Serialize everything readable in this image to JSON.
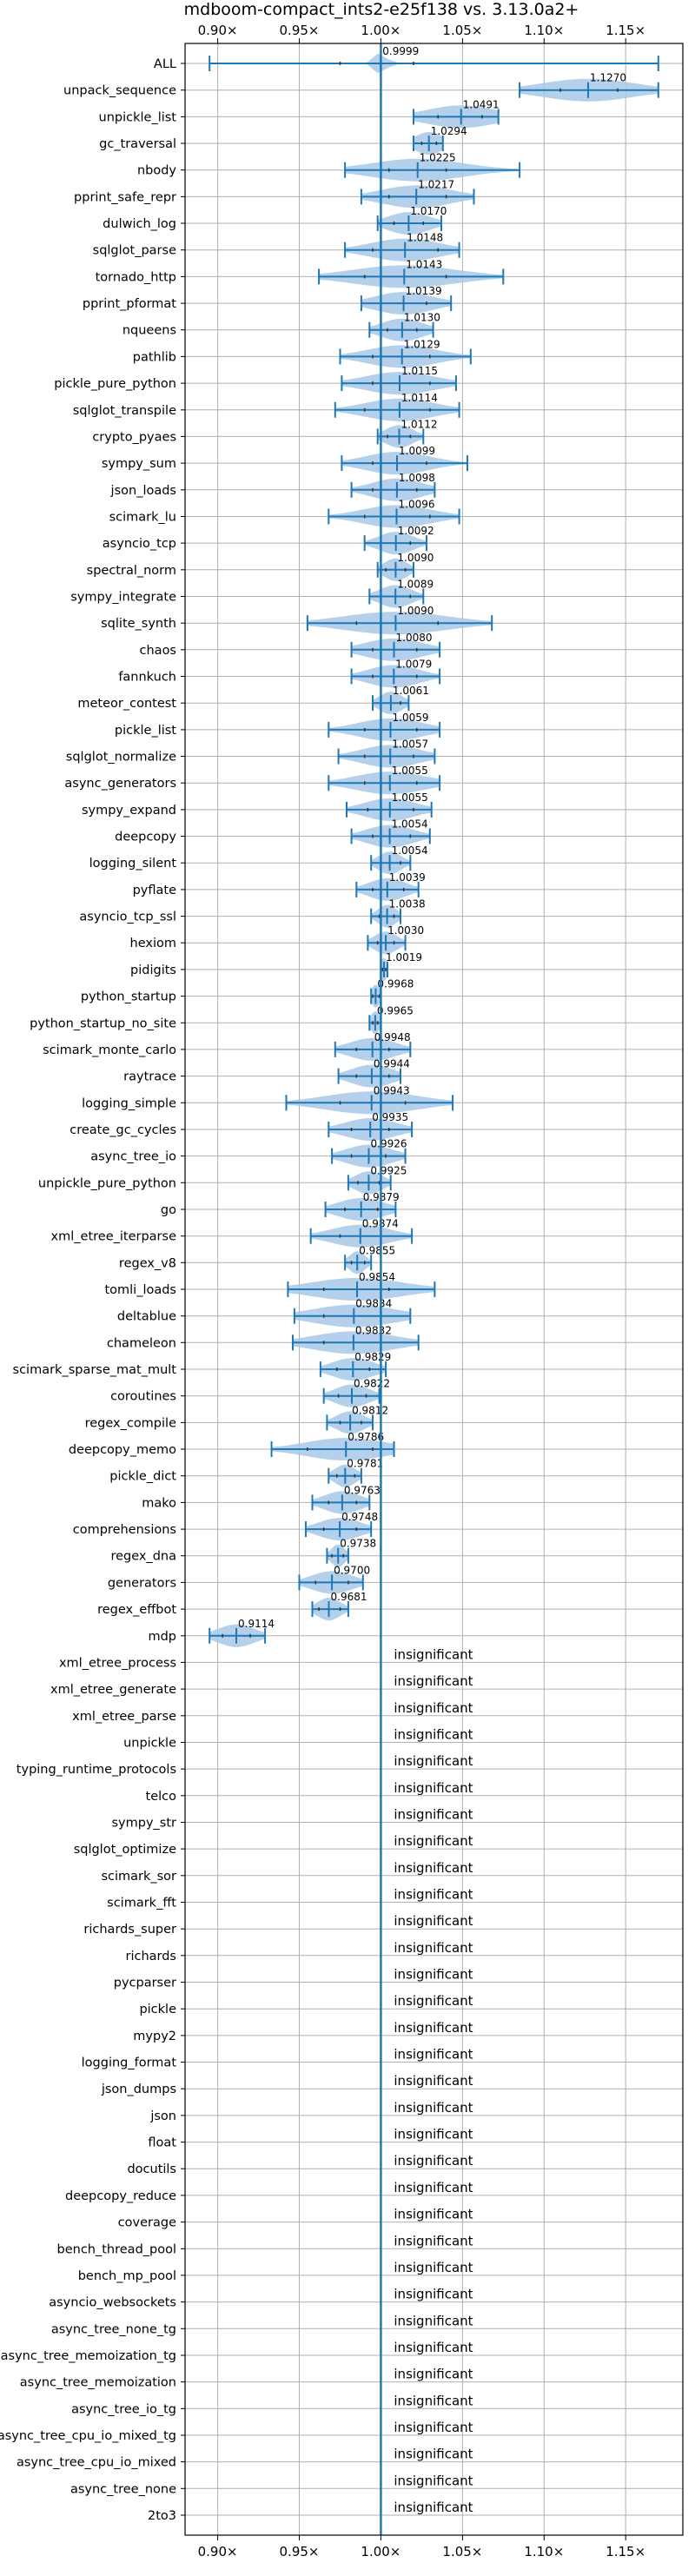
{
  "chart_data": {
    "type": "violin",
    "title": "mdboom-compact_ints2-e25f138 vs. 3.13.0a2+",
    "xlim": [
      0.88,
      1.185
    ],
    "x_ticks": [
      0.9,
      0.95,
      1.0,
      1.05,
      1.1,
      1.15
    ],
    "x_tick_labels": [
      "0.90×",
      "0.95×",
      "1.00×",
      "1.05×",
      "1.10×",
      "1.15×"
    ],
    "reference_line": 1.0,
    "grid": true,
    "colors": {
      "violin": "#a7c8e6",
      "line": "#1f77b4",
      "grid": "#b0b0b0"
    },
    "insignificant_text": "insignificant",
    "benchmarks": [
      {
        "name": "ALL",
        "label": "0.9999",
        "mean": 0.9999,
        "min": 0.895,
        "max": 1.17,
        "q1": 0.975,
        "q3": 1.02,
        "spread": 0.005
      },
      {
        "name": "unpack_sequence",
        "label": "1.1270",
        "mean": 1.127,
        "min": 1.085,
        "max": 1.17,
        "q1": 1.11,
        "q3": 1.145,
        "spread": 0.04
      },
      {
        "name": "unpickle_list",
        "label": "1.0491",
        "mean": 1.0491,
        "min": 1.02,
        "max": 1.072,
        "q1": 1.035,
        "q3": 1.062,
        "spread": 0.03
      },
      {
        "name": "gc_traversal",
        "label": "1.0294",
        "mean": 1.0294,
        "min": 1.02,
        "max": 1.038,
        "q1": 1.025,
        "q3": 1.034,
        "spread": 0.012
      },
      {
        "name": "nbody",
        "label": "1.0225",
        "mean": 1.0225,
        "min": 0.978,
        "max": 1.085,
        "q1": 1.005,
        "q3": 1.04,
        "spread": 0.04
      },
      {
        "name": "pprint_safe_repr",
        "label": "1.0217",
        "mean": 1.0217,
        "min": 0.988,
        "max": 1.057,
        "q1": 1.005,
        "q3": 1.04,
        "spread": 0.03
      },
      {
        "name": "dulwich_log",
        "label": "1.0170",
        "mean": 1.017,
        "min": 0.998,
        "max": 1.037,
        "q1": 1.008,
        "q3": 1.026,
        "spread": 0.018
      },
      {
        "name": "sqlglot_parse",
        "label": "1.0148",
        "mean": 1.0148,
        "min": 0.978,
        "max": 1.048,
        "q1": 0.995,
        "q3": 1.035,
        "spread": 0.03
      },
      {
        "name": "tornado_http",
        "label": "1.0143",
        "mean": 1.0143,
        "min": 0.962,
        "max": 1.075,
        "q1": 0.99,
        "q3": 1.04,
        "spread": 0.045
      },
      {
        "name": "pprint_pformat",
        "label": "1.0139",
        "mean": 1.0139,
        "min": 0.988,
        "max": 1.043,
        "q1": 1.0,
        "q3": 1.028,
        "spread": 0.025
      },
      {
        "name": "nqueens",
        "label": "1.0130",
        "mean": 1.013,
        "min": 0.993,
        "max": 1.032,
        "q1": 1.004,
        "q3": 1.022,
        "spread": 0.018
      },
      {
        "name": "pathlib",
        "label": "1.0129",
        "mean": 1.0129,
        "min": 0.975,
        "max": 1.055,
        "q1": 0.995,
        "q3": 1.03,
        "spread": 0.03
      },
      {
        "name": "pickle_pure_python",
        "label": "1.0115",
        "mean": 1.0115,
        "min": 0.976,
        "max": 1.046,
        "q1": 0.995,
        "q3": 1.03,
        "spread": 0.03
      },
      {
        "name": "sqlglot_transpile",
        "label": "1.0114",
        "mean": 1.0114,
        "min": 0.972,
        "max": 1.048,
        "q1": 0.99,
        "q3": 1.03,
        "spread": 0.03
      },
      {
        "name": "crypto_pyaes",
        "label": "1.0112",
        "mean": 1.0112,
        "min": 0.998,
        "max": 1.026,
        "q1": 1.004,
        "q3": 1.018,
        "spread": 0.012
      },
      {
        "name": "sympy_sum",
        "label": "1.0099",
        "mean": 1.0099,
        "min": 0.976,
        "max": 1.053,
        "q1": 0.995,
        "q3": 1.028,
        "spread": 0.028
      },
      {
        "name": "json_loads",
        "label": "1.0098",
        "mean": 1.0098,
        "min": 0.982,
        "max": 1.033,
        "q1": 0.995,
        "q3": 1.022,
        "spread": 0.022
      },
      {
        "name": "scimark_lu",
        "label": "1.0096",
        "mean": 1.0096,
        "min": 0.968,
        "max": 1.048,
        "q1": 0.99,
        "q3": 1.03,
        "spread": 0.03
      },
      {
        "name": "asyncio_tcp",
        "label": "1.0092",
        "mean": 1.0092,
        "min": 0.99,
        "max": 1.028,
        "q1": 1.0,
        "q3": 1.018,
        "spread": 0.015
      },
      {
        "name": "spectral_norm",
        "label": "1.0090",
        "mean": 1.009,
        "min": 0.998,
        "max": 1.02,
        "q1": 1.003,
        "q3": 1.015,
        "spread": 0.01
      },
      {
        "name": "sympy_integrate",
        "label": "1.0089",
        "mean": 1.0089,
        "min": 0.993,
        "max": 1.026,
        "q1": 1.0,
        "q3": 1.018,
        "spread": 0.014
      },
      {
        "name": "sqlite_synth",
        "label": "1.0090",
        "mean": 1.009,
        "min": 0.955,
        "max": 1.068,
        "q1": 0.985,
        "q3": 1.035,
        "spread": 0.045
      },
      {
        "name": "chaos",
        "label": "1.0080",
        "mean": 1.008,
        "min": 0.982,
        "max": 1.036,
        "q1": 0.995,
        "q3": 1.022,
        "spread": 0.025
      },
      {
        "name": "fannkuch",
        "label": "1.0079",
        "mean": 1.0079,
        "min": 0.982,
        "max": 1.036,
        "q1": 0.995,
        "q3": 1.022,
        "spread": 0.022
      },
      {
        "name": "meteor_contest",
        "label": "1.0061",
        "mean": 1.0061,
        "min": 0.995,
        "max": 1.017,
        "q1": 1.0,
        "q3": 1.012,
        "spread": 0.01
      },
      {
        "name": "pickle_list",
        "label": "1.0059",
        "mean": 1.0059,
        "min": 0.968,
        "max": 1.036,
        "q1": 0.99,
        "q3": 1.022,
        "spread": 0.028
      },
      {
        "name": "sqlglot_normalize",
        "label": "1.0057",
        "mean": 1.0057,
        "min": 0.974,
        "max": 1.033,
        "q1": 0.99,
        "q3": 1.02,
        "spread": 0.025
      },
      {
        "name": "async_generators",
        "label": "1.0055",
        "mean": 1.0055,
        "min": 0.968,
        "max": 1.036,
        "q1": 0.99,
        "q3": 1.022,
        "spread": 0.03
      },
      {
        "name": "sympy_expand",
        "label": "1.0055",
        "mean": 1.0055,
        "min": 0.979,
        "max": 1.031,
        "q1": 0.992,
        "q3": 1.02,
        "spread": 0.022
      },
      {
        "name": "deepcopy",
        "label": "1.0054",
        "mean": 1.0054,
        "min": 0.982,
        "max": 1.03,
        "q1": 0.995,
        "q3": 1.018,
        "spread": 0.02
      },
      {
        "name": "logging_silent",
        "label": "1.0054",
        "mean": 1.0054,
        "min": 0.994,
        "max": 1.018,
        "q1": 1.0,
        "q3": 1.012,
        "spread": 0.01
      },
      {
        "name": "pyflate",
        "label": "1.0039",
        "mean": 1.0039,
        "min": 0.985,
        "max": 1.023,
        "q1": 0.995,
        "q3": 1.014,
        "spread": 0.016
      },
      {
        "name": "asyncio_tcp_ssl",
        "label": "1.0038",
        "mean": 1.0038,
        "min": 0.994,
        "max": 1.012,
        "q1": 0.999,
        "q3": 1.008,
        "spread": 0.008
      },
      {
        "name": "hexiom",
        "label": "1.0030",
        "mean": 1.003,
        "min": 0.992,
        "max": 1.015,
        "q1": 0.998,
        "q3": 1.008,
        "spread": 0.01
      },
      {
        "name": "pidigits",
        "label": "1.0019",
        "mean": 1.0019,
        "min": 1.0,
        "max": 1.004,
        "q1": 1.001,
        "q3": 1.003,
        "spread": 0.003
      },
      {
        "name": "python_startup",
        "label": "0.9968",
        "mean": 0.9968,
        "min": 0.994,
        "max": 1.0,
        "q1": 0.995,
        "q3": 0.999,
        "spread": 0.004
      },
      {
        "name": "python_startup_no_site",
        "label": "0.9965",
        "mean": 0.9965,
        "min": 0.993,
        "max": 1.0,
        "q1": 0.995,
        "q3": 0.998,
        "spread": 0.004
      },
      {
        "name": "scimark_monte_carlo",
        "label": "0.9948",
        "mean": 0.9948,
        "min": 0.972,
        "max": 1.018,
        "q1": 0.985,
        "q3": 1.005,
        "spread": 0.02
      },
      {
        "name": "raytrace",
        "label": "0.9944",
        "mean": 0.9944,
        "min": 0.974,
        "max": 1.012,
        "q1": 0.985,
        "q3": 1.005,
        "spread": 0.018
      },
      {
        "name": "logging_simple",
        "label": "0.9943",
        "mean": 0.9943,
        "min": 0.942,
        "max": 1.044,
        "q1": 0.975,
        "q3": 1.015,
        "spread": 0.04
      },
      {
        "name": "create_gc_cycles",
        "label": "0.9935",
        "mean": 0.9935,
        "min": 0.968,
        "max": 1.019,
        "q1": 0.982,
        "q3": 1.005,
        "spread": 0.022
      },
      {
        "name": "async_tree_io",
        "label": "0.9926",
        "mean": 0.9926,
        "min": 0.97,
        "max": 1.015,
        "q1": 0.982,
        "q3": 1.003,
        "spread": 0.02
      },
      {
        "name": "unpickle_pure_python",
        "label": "0.9925",
        "mean": 0.9925,
        "min": 0.98,
        "max": 1.006,
        "q1": 0.986,
        "q3": 0.999,
        "spread": 0.012
      },
      {
        "name": "go",
        "label": "0.9879",
        "mean": 0.9879,
        "min": 0.966,
        "max": 1.009,
        "q1": 0.978,
        "q3": 0.998,
        "spread": 0.02
      },
      {
        "name": "xml_etree_iterparse",
        "label": "0.9874",
        "mean": 0.9874,
        "min": 0.957,
        "max": 1.019,
        "q1": 0.975,
        "q3": 1.0,
        "spread": 0.025
      },
      {
        "name": "regex_v8",
        "label": "0.9855",
        "mean": 0.9855,
        "min": 0.978,
        "max": 0.994,
        "q1": 0.982,
        "q3": 0.99,
        "spread": 0.007
      },
      {
        "name": "tomli_loads",
        "label": "0.9854",
        "mean": 0.9854,
        "min": 0.943,
        "max": 1.033,
        "q1": 0.965,
        "q3": 1.005,
        "spread": 0.04
      },
      {
        "name": "deltablue",
        "label": "0.9834",
        "mean": 0.9834,
        "min": 0.947,
        "max": 1.018,
        "q1": 0.965,
        "q3": 1.0,
        "spread": 0.035
      },
      {
        "name": "chameleon",
        "label": "0.9832",
        "mean": 0.9832,
        "min": 0.946,
        "max": 1.023,
        "q1": 0.965,
        "q3": 1.0,
        "spread": 0.035
      },
      {
        "name": "scimark_sparse_mat_mult",
        "label": "0.9829",
        "mean": 0.9829,
        "min": 0.963,
        "max": 1.003,
        "q1": 0.973,
        "q3": 0.993,
        "spread": 0.018
      },
      {
        "name": "coroutines",
        "label": "0.9822",
        "mean": 0.9822,
        "min": 0.965,
        "max": 0.999,
        "q1": 0.974,
        "q3": 0.991,
        "spread": 0.015
      },
      {
        "name": "regex_compile",
        "label": "0.9812",
        "mean": 0.9812,
        "min": 0.967,
        "max": 0.995,
        "q1": 0.975,
        "q3": 0.988,
        "spread": 0.012
      },
      {
        "name": "deepcopy_memo",
        "label": "0.9786",
        "mean": 0.9786,
        "min": 0.933,
        "max": 1.008,
        "q1": 0.955,
        "q3": 0.995,
        "spread": 0.035
      },
      {
        "name": "pickle_dict",
        "label": "0.9781",
        "mean": 0.9781,
        "min": 0.968,
        "max": 0.988,
        "q1": 0.973,
        "q3": 0.984,
        "spread": 0.009
      },
      {
        "name": "mako",
        "label": "0.9763",
        "mean": 0.9763,
        "min": 0.958,
        "max": 0.993,
        "q1": 0.968,
        "q3": 0.985,
        "spread": 0.016
      },
      {
        "name": "comprehensions",
        "label": "0.9748",
        "mean": 0.9748,
        "min": 0.954,
        "max": 0.994,
        "q1": 0.965,
        "q3": 0.985,
        "spread": 0.018
      },
      {
        "name": "regex_dna",
        "label": "0.9738",
        "mean": 0.9738,
        "min": 0.967,
        "max": 0.98,
        "q1": 0.97,
        "q3": 0.977,
        "spread": 0.006
      },
      {
        "name": "generators",
        "label": "0.9700",
        "mean": 0.97,
        "min": 0.95,
        "max": 0.989,
        "q1": 0.96,
        "q3": 0.98,
        "spread": 0.018
      },
      {
        "name": "regex_effbot",
        "label": "0.9681",
        "mean": 0.9681,
        "min": 0.958,
        "max": 0.98,
        "q1": 0.962,
        "q3": 0.975,
        "spread": 0.01
      },
      {
        "name": "mdp",
        "label": "0.9114",
        "mean": 0.9114,
        "min": 0.895,
        "max": 0.929,
        "q1": 0.903,
        "q3": 0.92,
        "spread": 0.016
      }
    ],
    "insignificant": [
      "xml_etree_process",
      "xml_etree_generate",
      "xml_etree_parse",
      "unpickle",
      "typing_runtime_protocols",
      "telco",
      "sympy_str",
      "sqlglot_optimize",
      "scimark_sor",
      "scimark_fft",
      "richards_super",
      "richards",
      "pycparser",
      "pickle",
      "mypy2",
      "logging_format",
      "json_dumps",
      "json",
      "float",
      "docutils",
      "deepcopy_reduce",
      "coverage",
      "bench_thread_pool",
      "bench_mp_pool",
      "asyncio_websockets",
      "async_tree_none_tg",
      "async_tree_memoization_tg",
      "async_tree_memoization",
      "async_tree_io_tg",
      "async_tree_cpu_io_mixed_tg",
      "async_tree_cpu_io_mixed",
      "async_tree_none",
      "2to3"
    ]
  }
}
